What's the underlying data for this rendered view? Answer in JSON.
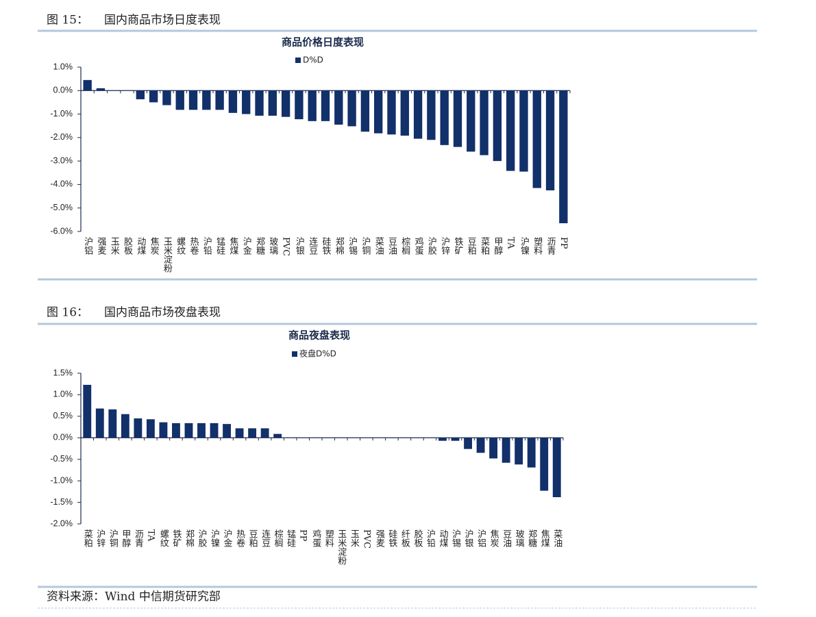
{
  "figures": [
    {
      "label": "图 15：",
      "title": "国内商品市场日度表现"
    },
    {
      "label": "图 16：",
      "title": "国内商品市场夜盘表现"
    }
  ],
  "source": "资料来源：Wind  中信期货研究部",
  "chart_data": [
    {
      "type": "bar",
      "title": "商品价格日度表现",
      "legend": "top",
      "categories": [
        "沪铝",
        "强麦",
        "玉米",
        "胶板",
        "动煤",
        "焦炭",
        "玉米淀粉",
        "螺纹",
        "热卷",
        "沪铅",
        "锰硅",
        "焦煤",
        "沪金",
        "郑糖",
        "玻璃",
        "PVC",
        "沪银",
        "连豆",
        "硅铁",
        "郑棉",
        "沪锡",
        "沪铜",
        "菜油",
        "豆油",
        "棕榈",
        "鸡蛋",
        "沪胶",
        "沪锌",
        "铁矿",
        "豆粕",
        "菜粕",
        "甲醇",
        "TA",
        "沪镍",
        "塑料",
        "沥青",
        "PP"
      ],
      "series": [
        {
          "name": "D%D",
          "color": "#12306a",
          "values": [
            0.45,
            0.1,
            0,
            0,
            -0.37,
            -0.5,
            -0.62,
            -0.82,
            -0.82,
            -0.82,
            -0.82,
            -0.95,
            -1.0,
            -1.07,
            -1.07,
            -1.12,
            -1.22,
            -1.3,
            -1.3,
            -1.45,
            -1.52,
            -1.75,
            -1.82,
            -1.87,
            -1.92,
            -2.05,
            -2.1,
            -2.32,
            -2.4,
            -2.6,
            -2.75,
            -3.0,
            -3.42,
            -3.45,
            -4.15,
            -4.25,
            -5.65
          ]
        }
      ],
      "ylim": [
        -6,
        1
      ],
      "yticks": [
        {
          "value": 1,
          "label": "1.0%"
        },
        {
          "value": 0,
          "label": "0.0%"
        },
        {
          "value": -1,
          "label": "-1.0%"
        },
        {
          "value": -2,
          "label": "-2.0%"
        },
        {
          "value": -3,
          "label": "-3.0%"
        },
        {
          "value": -4,
          "label": "-4.0%"
        },
        {
          "value": -5,
          "label": "-5.0%"
        },
        {
          "value": -6,
          "label": "-6.0%"
        }
      ],
      "grid": false
    },
    {
      "type": "bar",
      "title": "商品夜盘表现",
      "legend": "top",
      "categories": [
        "菜粕",
        "沪锌",
        "沪铜",
        "甲醇",
        "沥青",
        "TA",
        "螺纹",
        "铁矿",
        "郑棉",
        "沪胶",
        "沪镍",
        "沪金",
        "热卷",
        "豆粕",
        "连豆",
        "棕榈",
        "锰硅",
        "PP",
        "鸡蛋",
        "塑料",
        "玉米淀粉",
        "玉米",
        "PVC",
        "强麦",
        "硅铁",
        "纤板",
        "胶板",
        "沪铅",
        "动煤",
        "沪锡",
        "沪银",
        "沪铝",
        "焦炭",
        "豆油",
        "玻璃",
        "郑糖",
        "焦煤",
        "菜油"
      ],
      "series": [
        {
          "name": "夜盘D%D",
          "color": "#12306a",
          "values": [
            1.23,
            0.68,
            0.66,
            0.55,
            0.45,
            0.43,
            0.36,
            0.34,
            0.34,
            0.34,
            0.34,
            0.32,
            0.22,
            0.22,
            0.22,
            0.09,
            0,
            0,
            0,
            0,
            0,
            0,
            0,
            0,
            0,
            0,
            0,
            0,
            -0.07,
            -0.07,
            -0.26,
            -0.35,
            -0.48,
            -0.58,
            -0.62,
            -0.69,
            -1.23,
            -1.38
          ]
        }
      ],
      "ylim": [
        -2,
        1.5
      ],
      "yticks": [
        {
          "value": 1.5,
          "label": "1.5%"
        },
        {
          "value": 1,
          "label": "1.0%"
        },
        {
          "value": 0.5,
          "label": "0.5%"
        },
        {
          "value": 0,
          "label": "0.0%"
        },
        {
          "value": -0.5,
          "label": "-0.5%"
        },
        {
          "value": -1,
          "label": "-1.0%"
        },
        {
          "value": -1.5,
          "label": "-1.5%"
        },
        {
          "value": -2,
          "label": "-2.0%"
        }
      ],
      "grid": false
    }
  ]
}
